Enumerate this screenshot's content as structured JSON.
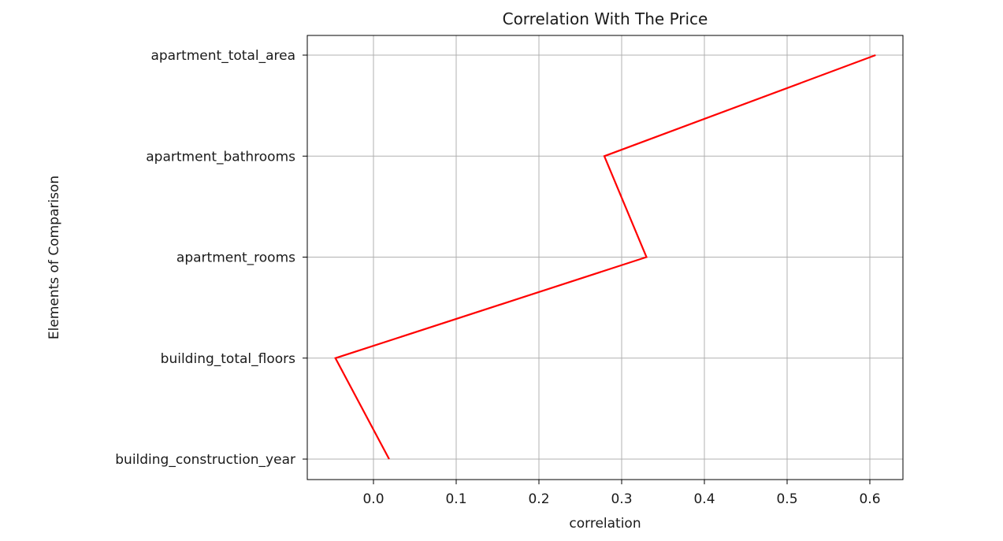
{
  "chart_data": {
    "type": "line",
    "title": "Correlation With The Price",
    "xlabel": "correlation",
    "ylabel": "Elements of Comparison",
    "categories": [
      "building_construction_year",
      "building_total_floors",
      "apartment_rooms",
      "apartment_bathrooms",
      "apartment_total_area"
    ],
    "series": [
      {
        "values": [
          0.019,
          -0.046,
          0.33,
          0.279,
          0.607
        ],
        "color": "#ff0000"
      }
    ],
    "xlim": [
      -0.08,
      0.64
    ],
    "xticks": [
      0.0,
      0.1,
      0.2,
      0.3,
      0.4,
      0.5,
      0.6
    ],
    "xtick_labels": [
      "0.0",
      "0.1",
      "0.2",
      "0.3",
      "0.4",
      "0.5",
      "0.6"
    ],
    "grid": true,
    "orientation": "horizontal"
  }
}
